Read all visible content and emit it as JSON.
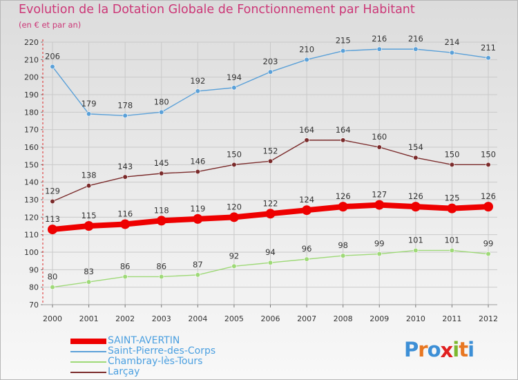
{
  "title": "Evolution de la Dotation Globale de Fonctionnement par Habitant",
  "subtitle": "(en € et par an)",
  "logo": {
    "text": "Proxiti",
    "letters": [
      "P",
      "r",
      "o",
      "x",
      "i",
      "t",
      "i"
    ],
    "colors": [
      "#3d8fd6",
      "#e87722",
      "#3d8fd6",
      "#e02020",
      "#7cb82f",
      "#e87722",
      "#3d8fd6"
    ]
  },
  "chart_data": {
    "type": "line",
    "title": "Evolution de la Dotation Globale de Fonctionnement par Habitant",
    "subtitle": "(en € et par an)",
    "xlabel": "",
    "ylabel": "",
    "x": [
      "2000",
      "2001",
      "2002",
      "2003",
      "2004",
      "2005",
      "2006",
      "2007",
      "2008",
      "2009",
      "2010",
      "2011",
      "2012"
    ],
    "ylim": [
      70,
      220
    ],
    "yticks": [
      70,
      80,
      90,
      100,
      110,
      120,
      130,
      140,
      150,
      160,
      170,
      180,
      190,
      200,
      210,
      220
    ],
    "grid": true,
    "legend_position": "bottom-left",
    "series": [
      {
        "name": "SAINT-AVERTIN",
        "color": "#ee0000",
        "emphasis": true,
        "values": [
          113,
          115,
          116,
          118,
          119,
          120,
          122,
          124,
          126,
          127,
          126,
          125,
          126
        ]
      },
      {
        "name": "Saint-Pierre-des-Corps",
        "color": "#5aa0d8",
        "emphasis": false,
        "values": [
          206,
          179,
          178,
          180,
          192,
          194,
          203,
          210,
          215,
          216,
          216,
          214,
          211
        ]
      },
      {
        "name": "Chambray-lès-Tours",
        "color": "#9ed977",
        "emphasis": false,
        "values": [
          80,
          83,
          86,
          86,
          87,
          92,
          94,
          96,
          98,
          99,
          101,
          101,
          99
        ]
      },
      {
        "name": "Larçay",
        "color": "#7a2a2a",
        "emphasis": false,
        "values": [
          129,
          138,
          143,
          145,
          146,
          150,
          152,
          164,
          164,
          160,
          154,
          150,
          150
        ]
      }
    ]
  }
}
